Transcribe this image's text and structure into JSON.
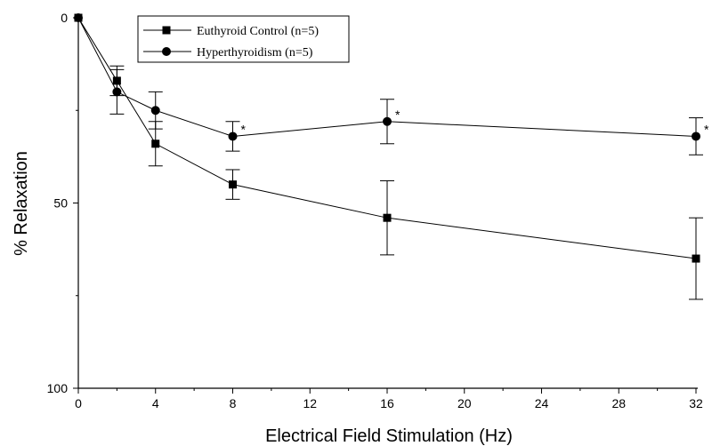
{
  "chart_data": {
    "type": "line",
    "xlabel": "Electrical Field Stimulation (Hz)",
    "ylabel": "% Relaxation",
    "xlim": [
      0,
      32
    ],
    "ylim": [
      0,
      100
    ],
    "y_inverted": true,
    "x_ticks": [
      "0",
      "4",
      "8",
      "12",
      "16",
      "20",
      "24",
      "28",
      "32"
    ],
    "y_ticks": [
      "0",
      "50",
      "100"
    ],
    "legend_position": "top-left",
    "grid": false,
    "series": [
      {
        "name": "Euthyroid Control (n=5)",
        "marker": "square",
        "x": [
          0,
          2,
          4,
          8,
          16,
          32
        ],
        "y": [
          0,
          17,
          34,
          45,
          54,
          65
        ],
        "error": [
          0,
          4,
          6,
          4,
          10,
          11
        ],
        "significance": [
          "",
          "",
          "",
          "",
          "",
          ""
        ]
      },
      {
        "name": "Hyperthyroidism (n=5)",
        "marker": "circle",
        "x": [
          0,
          2,
          4,
          8,
          16,
          32
        ],
        "y": [
          0,
          20,
          25,
          32,
          28,
          32
        ],
        "error": [
          0,
          6,
          5,
          4,
          6,
          5
        ],
        "significance": [
          "",
          "",
          "",
          "*",
          "*",
          "*"
        ]
      }
    ]
  }
}
